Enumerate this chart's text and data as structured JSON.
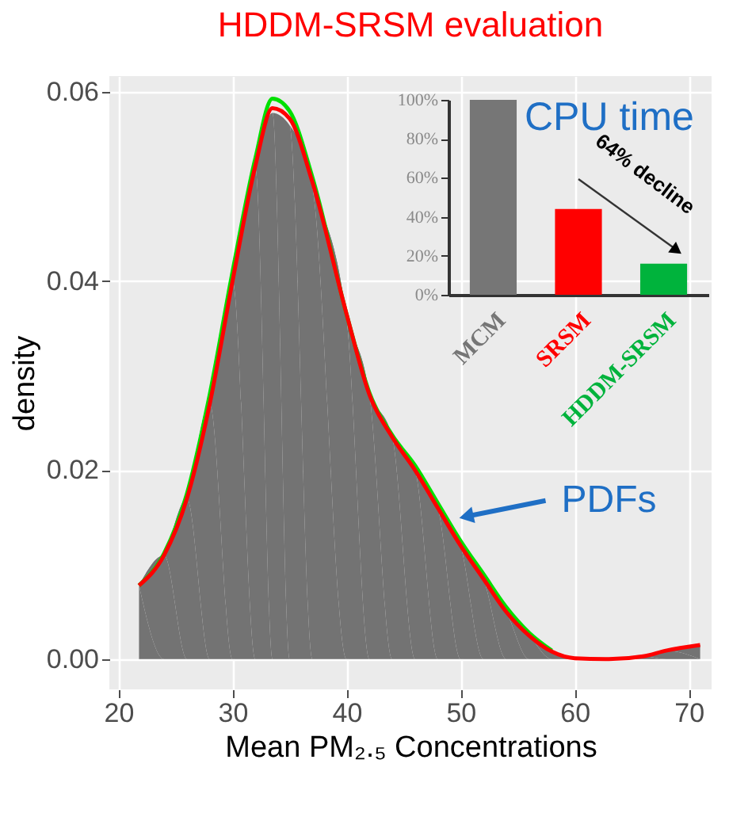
{
  "chart_data": [
    {
      "type": "area",
      "title": "HDDM-SRSM evaluation",
      "xlabel": "Mean PM₂.₅ Concentrations",
      "ylabel": "density",
      "x": [
        21.8,
        24,
        26,
        28,
        30,
        32,
        33.5,
        35,
        37,
        40,
        42,
        44,
        46,
        48,
        50,
        52,
        54,
        56,
        58,
        60,
        63,
        66,
        68,
        71
      ],
      "series": [
        {
          "type": "area",
          "color": "#737373",
          "values": [
            0.0078,
            0.011,
            0.017,
            0.027,
            0.04,
            0.052,
            0.0578,
            0.0565,
            0.05,
            0.036,
            0.028,
            0.0235,
            0.02,
            0.016,
            0.012,
            0.0085,
            0.005,
            0.0025,
            0.0008,
            0.0001,
            0.0,
            0.0003,
            0.0009,
            0.0015
          ]
        },
        {
          "type": "line",
          "color": "#00e000",
          "values": [
            0.0078,
            0.0112,
            0.0175,
            0.028,
            0.041,
            0.053,
            0.0593,
            0.058,
            0.051,
            0.0365,
            0.0282,
            0.0237,
            0.0205,
            0.0165,
            0.0125,
            0.009,
            0.0055,
            0.0028,
            0.0009,
            null,
            null,
            null,
            null,
            null
          ]
        },
        {
          "type": "line",
          "color": "#ff0000",
          "values": [
            0.0078,
            0.011,
            0.017,
            0.027,
            0.04,
            0.0522,
            0.0583,
            0.0572,
            0.0505,
            0.0365,
            0.028,
            0.0235,
            0.02,
            0.016,
            0.012,
            0.0085,
            0.005,
            0.0025,
            0.0008,
            0.0001,
            0.0,
            0.0003,
            0.0009,
            0.0015
          ]
        }
      ],
      "xlim": [
        19.2,
        72
      ],
      "ylim": [
        -0.0032,
        0.0617
      ],
      "xticks": [
        20,
        30,
        40,
        50,
        60,
        70
      ],
      "yticks": [
        {
          "value": 0,
          "label": "0.00"
        },
        {
          "value": 0.02,
          "label": "0.02"
        },
        {
          "value": 0.04,
          "label": "0.04"
        },
        {
          "value": 0.06,
          "label": "0.06"
        }
      ],
      "grid": true,
      "annotations": [
        {
          "text": "PDFs",
          "x": 50.5,
          "y": 0.0151
        }
      ]
    },
    {
      "type": "bar",
      "title": "CPU time",
      "categories": [
        "MCM",
        "SRSM",
        "HDDM-SRSM"
      ],
      "values": [
        100,
        44,
        16
      ],
      "colors": [
        "#767676",
        "#ff0000",
        "#00b33c"
      ],
      "ylim": [
        0,
        100
      ],
      "yticks": [
        {
          "value": 0,
          "label": "0%"
        },
        {
          "value": 20,
          "label": "20%"
        },
        {
          "value": 40,
          "label": "40%"
        },
        {
          "value": 60,
          "label": "60%"
        },
        {
          "value": 80,
          "label": "80%"
        },
        {
          "value": 100,
          "label": "100%"
        }
      ],
      "annotations": [
        "64% decline"
      ]
    }
  ]
}
